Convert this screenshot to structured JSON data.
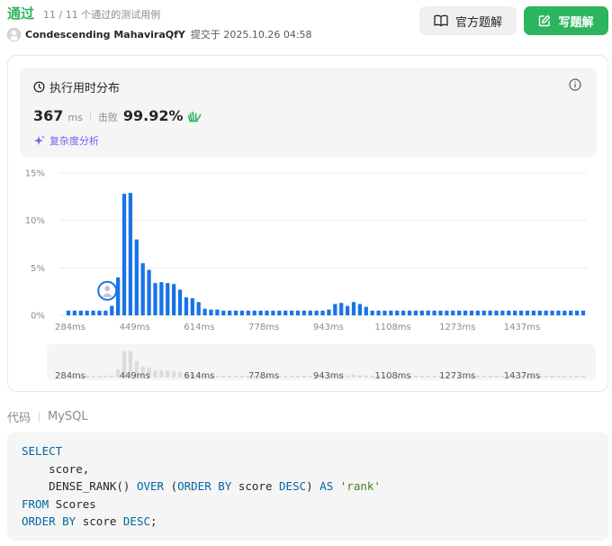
{
  "header": {
    "status": "通过",
    "cases": "11 / 11 个通过的测试用例",
    "user_name": "Condescending MahaviraQfY",
    "submitted": "提交于 2025.10.26 04:58",
    "official_button": "官方题解",
    "write_button": "写题解"
  },
  "runtime_card": {
    "title": "执行用时分布",
    "value": "367",
    "unit": "ms",
    "beats_label": "击败",
    "beats_value": "99.92%",
    "complexity_link": "复杂度分析"
  },
  "chart_data": {
    "type": "bar",
    "ylim": [
      0,
      15
    ],
    "y_ticks": [
      "15%",
      "10%",
      "5%",
      "0%"
    ],
    "x_tick_labels": [
      "284ms",
      "449ms",
      "614ms",
      "778ms",
      "943ms",
      "1108ms",
      "1273ms",
      "1437ms"
    ],
    "bar_color": "#1a73e8",
    "current_marker_index": 7,
    "values": [
      0.5,
      0.5,
      0.5,
      0.5,
      0.5,
      0.5,
      0.5,
      1.0,
      4.0,
      12.8,
      12.9,
      8.0,
      5.5,
      4.8,
      3.4,
      3.5,
      3.4,
      3.3,
      2.7,
      1.9,
      1.8,
      1.4,
      0.7,
      0.6,
      0.6,
      0.5,
      0.5,
      0.5,
      0.5,
      0.5,
      0.5,
      0.5,
      0.5,
      0.5,
      0.5,
      0.5,
      0.5,
      0.5,
      0.5,
      0.5,
      0.5,
      0.5,
      0.6,
      1.2,
      1.3,
      1.0,
      1.4,
      1.2,
      0.9,
      0.5,
      0.5,
      0.5,
      0.5,
      0.5,
      0.5,
      0.5,
      0.5,
      0.5,
      0.5,
      0.5,
      0.5,
      0.5,
      0.5,
      0.5,
      0.5,
      0.5,
      0.5,
      0.5,
      0.5,
      0.5,
      0.5,
      0.5,
      0.5,
      0.5,
      0.5,
      0.5,
      0.5,
      0.5,
      0.5,
      0.5,
      0.5,
      0.5,
      0.5,
      0.5
    ]
  },
  "code": {
    "label": "代码",
    "language": "MySQL"
  }
}
